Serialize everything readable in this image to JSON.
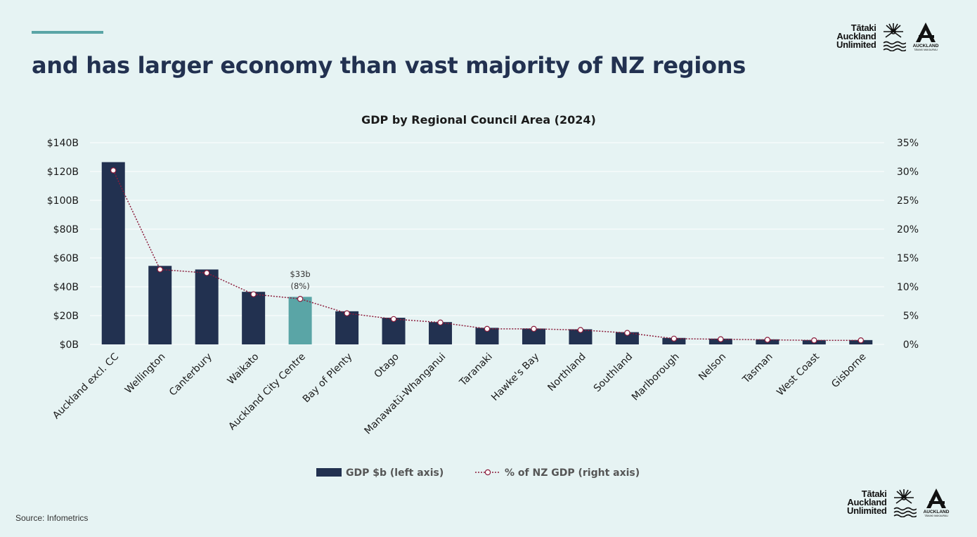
{
  "page": {
    "headline": "and has larger economy than vast majority of NZ regions",
    "source": "Source: Infometrics",
    "logo": {
      "line1": "Tātaki",
      "line2": "Auckland",
      "line3": "Unlimited",
      "badge_text": "AUCKLAND",
      "badge_subtext": "TĀMAKI MAKAURAU"
    }
  },
  "colors": {
    "background": "#e6f3f3",
    "navy": "#223150",
    "teal": "#5aa5a6",
    "line": "#8b1c3b",
    "grid": "#ffffff"
  },
  "chart_data": {
    "type": "bar",
    "title": "GDP by Regional Council Area (2024)",
    "categories": [
      "Auckland  excl. CC",
      "Wellington",
      "Canterbury",
      "Waikato",
      "Auckland City Centre",
      "Bay of Plenty",
      "Otago",
      "Manawatū-Whanganui",
      "Taranaki",
      "Hawke's Bay",
      "Northland",
      "Southland",
      "Marlborough",
      "Nelson",
      "Tasman",
      "West Coast",
      "Gisborne"
    ],
    "series": [
      {
        "name": "GDP $b (left axis)",
        "type": "bar",
        "axis": "left",
        "values": [
          126.5,
          54.5,
          52,
          36.5,
          33,
          23,
          18.5,
          15.5,
          11.5,
          11,
          10.5,
          8.5,
          4.5,
          4,
          3.5,
          3,
          3
        ]
      },
      {
        "name": "% of NZ GDP (right axis)",
        "type": "line",
        "axis": "right",
        "values": [
          30.2,
          13.0,
          12.4,
          8.7,
          7.9,
          5.4,
          4.4,
          3.8,
          2.7,
          2.7,
          2.5,
          2.0,
          1.0,
          0.9,
          0.8,
          0.7,
          0.7
        ]
      }
    ],
    "highlight_index": 4,
    "annotation": {
      "index": 4,
      "line1": "$33b",
      "line2": "(8%)"
    },
    "y_left": {
      "ylim": [
        0,
        140
      ],
      "ticks": [
        "$0B",
        "$20B",
        "$40B",
        "$60B",
        "$80B",
        "$100B",
        "$120B",
        "$140B"
      ]
    },
    "y_right": {
      "ylim": [
        0,
        35
      ],
      "ticks": [
        "0%",
        "5%",
        "10%",
        "15%",
        "20%",
        "25%",
        "30%",
        "35%"
      ]
    },
    "grid": true,
    "legend_position": "bottom-center"
  }
}
